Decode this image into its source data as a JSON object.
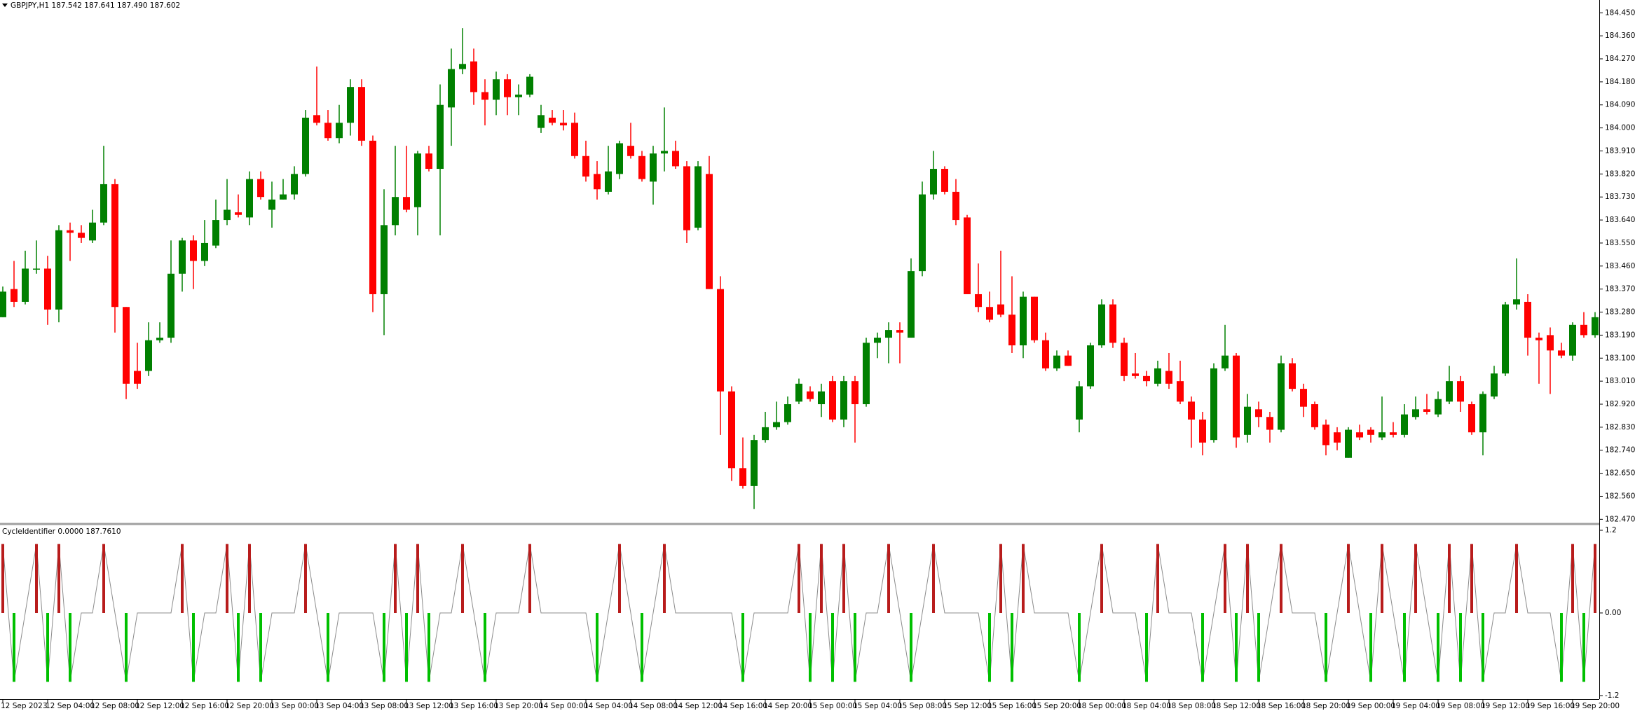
{
  "chart_data": [
    {
      "type": "candlestick",
      "title": "GBPJPY,H1  187.542 187.641 187.490 187.602",
      "categories": [
        "12 Sep 2023",
        null,
        null,
        null,
        "12 Sep 04:00",
        null,
        null,
        null,
        "12 Sep 08:00",
        null,
        null,
        null,
        "12 Sep 12:00",
        null,
        null,
        null,
        "12 Sep 16:00",
        null,
        null,
        null,
        "12 Sep 20:00",
        null,
        null,
        null,
        "13 Sep 00:00",
        null,
        null,
        null,
        "13 Sep 04:00",
        null,
        null,
        null,
        "13 Sep 08:00",
        null,
        null,
        null,
        "13 Sep 12:00",
        null,
        null,
        null,
        "13 Sep 16:00",
        null,
        null,
        null,
        "13 Sep 20:00",
        null,
        null,
        null,
        "14 Sep 00:00",
        null,
        null,
        null,
        "14 Sep 04:00",
        null,
        null,
        null,
        "14 Sep 08:00",
        null,
        null,
        null,
        "14 Sep 12:00",
        null,
        null,
        null,
        "14 Sep 16:00",
        null,
        null,
        null,
        "14 Sep 20:00",
        null,
        null,
        null,
        "15 Sep 00:00",
        null,
        null,
        null,
        "15 Sep 04:00",
        null,
        null,
        null,
        "15 Sep 08:00",
        null,
        null,
        null,
        "15 Sep 12:00",
        null,
        null,
        null,
        "15 Sep 16:00",
        null,
        null,
        null,
        "15 Sep 20:00",
        null,
        null,
        null,
        "18 Sep 00:00",
        null,
        null,
        null,
        "18 Sep 04:00",
        null,
        null,
        null,
        "18 Sep 08:00",
        null,
        null,
        null,
        "18 Sep 12:00",
        null,
        null,
        null,
        "18 Sep 16:00",
        null,
        null,
        null,
        "18 Sep 20:00",
        null,
        null,
        null,
        "19 Sep 00:00",
        null,
        null,
        null,
        "19 Sep 04:00",
        null,
        null,
        null,
        "19 Sep 08:00",
        null,
        null,
        null,
        "19 Sep 12:00",
        null,
        null,
        null,
        "19 Sep 16:00",
        null,
        null,
        null,
        "19 Sep 20:00",
        null,
        null
      ],
      "open": [
        183.26,
        183.37,
        183.32,
        183.45,
        183.45,
        183.29,
        183.6,
        183.59,
        183.56,
        183.63,
        183.78,
        183.3,
        183.05,
        183.05,
        183.17,
        183.18,
        183.43,
        183.56,
        183.48,
        183.54,
        183.64,
        183.67,
        183.65,
        183.8,
        183.68,
        183.72,
        183.74,
        183.82,
        184.05,
        184.02,
        183.96,
        184.02,
        184.16,
        183.95,
        183.35,
        183.62,
        183.73,
        183.69,
        183.9,
        183.84,
        184.08,
        184.23,
        184.26,
        184.14,
        184.11,
        184.19,
        184.12,
        184.13,
        184.0,
        184.04,
        184.02,
        184.02,
        183.89,
        183.82,
        183.75,
        183.82,
        183.93,
        183.89,
        183.79,
        183.9,
        183.91,
        183.85,
        183.61,
        183.82,
        183.37,
        182.97,
        182.67,
        182.6,
        182.78,
        182.83,
        182.85,
        182.93,
        182.97,
        182.92,
        183.01,
        182.86,
        183.01,
        182.92,
        183.16,
        183.18,
        183.21,
        183.18,
        183.44,
        183.74,
        183.84,
        183.75,
        183.65,
        183.35,
        183.3,
        183.31,
        183.27,
        183.15,
        183.34,
        183.17,
        183.06,
        183.11,
        182.86,
        182.99,
        183.15,
        183.31,
        183.16,
        183.04,
        183.03,
        183.0,
        183.05,
        183.01,
        182.93,
        182.86,
        182.78,
        183.06,
        183.11,
        182.8,
        182.9,
        182.87,
        182.82,
        183.08,
        182.98,
        182.92,
        182.84,
        182.81,
        182.71,
        182.81,
        182.82,
        182.79,
        182.81,
        182.8,
        182.87,
        182.9,
        182.88,
        182.93,
        183.01,
        182.92,
        182.81,
        182.95,
        183.04,
        183.31,
        183.32,
        183.18,
        183.19,
        183.13,
        183.11,
        183.23,
        183.19
      ],
      "high": [
        183.38,
        183.48,
        183.52,
        183.56,
        183.5,
        183.62,
        183.63,
        183.62,
        183.68,
        183.93,
        183.8,
        183.3,
        183.16,
        183.24,
        183.24,
        183.56,
        183.57,
        183.58,
        183.64,
        183.72,
        183.8,
        183.74,
        183.83,
        183.83,
        183.79,
        183.8,
        183.85,
        184.07,
        184.24,
        184.07,
        184.09,
        184.19,
        184.19,
        183.97,
        183.76,
        183.93,
        183.93,
        183.91,
        183.93,
        184.17,
        184.31,
        184.39,
        184.31,
        184.19,
        184.22,
        184.21,
        184.17,
        184.21,
        184.09,
        184.07,
        184.07,
        184.06,
        183.95,
        183.87,
        183.93,
        183.95,
        184.02,
        183.91,
        183.93,
        184.08,
        183.95,
        183.87,
        183.87,
        183.89,
        183.42,
        182.99,
        182.79,
        182.8,
        182.89,
        182.93,
        182.95,
        183.02,
        182.99,
        183.0,
        183.03,
        183.03,
        183.03,
        183.18,
        183.2,
        183.24,
        183.24,
        183.49,
        183.79,
        183.91,
        183.85,
        183.8,
        183.66,
        183.47,
        183.36,
        183.52,
        183.42,
        183.36,
        183.34,
        183.2,
        183.13,
        183.13,
        183.01,
        183.16,
        183.33,
        183.33,
        183.18,
        183.12,
        183.05,
        183.09,
        183.12,
        183.09,
        182.95,
        182.89,
        183.08,
        183.23,
        183.12,
        182.96,
        182.93,
        182.89,
        183.11,
        183.1,
        183.0,
        182.93,
        182.86,
        182.83,
        182.83,
        182.84,
        182.83,
        182.95,
        182.85,
        182.92,
        182.95,
        182.96,
        182.97,
        183.07,
        183.03,
        182.93,
        182.97,
        183.07,
        183.32,
        183.49,
        183.35,
        183.2,
        183.22,
        183.16,
        183.24,
        183.28,
        183.28
      ],
      "low": [
        183.26,
        183.3,
        183.31,
        183.43,
        183.23,
        183.24,
        183.48,
        183.55,
        183.55,
        183.62,
        183.2,
        182.94,
        182.98,
        183.03,
        183.16,
        183.16,
        183.36,
        183.37,
        183.46,
        183.53,
        183.62,
        183.65,
        183.62,
        183.72,
        183.61,
        183.72,
        183.72,
        183.81,
        184.01,
        183.95,
        183.94,
        183.97,
        183.93,
        183.28,
        183.19,
        183.58,
        183.67,
        183.58,
        183.83,
        183.58,
        183.93,
        184.21,
        184.09,
        184.01,
        184.05,
        184.05,
        184.05,
        184.12,
        183.98,
        184.01,
        183.99,
        183.88,
        183.79,
        183.72,
        183.74,
        183.8,
        183.88,
        183.79,
        183.7,
        183.83,
        183.84,
        183.55,
        183.6,
        183.37,
        182.8,
        182.62,
        182.59,
        182.51,
        182.77,
        182.82,
        182.84,
        182.92,
        182.93,
        182.87,
        182.85,
        182.83,
        182.77,
        182.91,
        183.1,
        183.08,
        183.08,
        183.18,
        183.42,
        183.72,
        183.74,
        183.62,
        183.35,
        183.28,
        183.24,
        183.26,
        183.12,
        183.1,
        183.16,
        183.05,
        183.05,
        183.07,
        182.81,
        182.98,
        183.14,
        183.14,
        183.01,
        183.02,
        182.99,
        182.99,
        182.98,
        182.92,
        182.75,
        182.72,
        182.77,
        183.05,
        182.75,
        182.77,
        182.83,
        182.77,
        182.81,
        182.97,
        182.87,
        182.82,
        182.72,
        182.74,
        182.71,
        182.78,
        182.77,
        182.78,
        182.79,
        182.79,
        182.86,
        182.88,
        182.87,
        182.92,
        182.89,
        182.8,
        182.72,
        182.94,
        183.03,
        183.29,
        183.11,
        183.0,
        182.96,
        183.1,
        183.09,
        183.18,
        183.18
      ],
      "close": [
        183.36,
        183.32,
        183.45,
        183.45,
        183.29,
        183.6,
        183.59,
        183.57,
        183.63,
        183.78,
        183.3,
        183.0,
        183.0,
        183.17,
        183.18,
        183.43,
        183.56,
        183.48,
        183.55,
        183.64,
        183.68,
        183.66,
        183.8,
        183.73,
        183.72,
        183.74,
        183.82,
        184.04,
        184.02,
        183.96,
        184.02,
        184.16,
        183.95,
        183.35,
        183.62,
        183.73,
        183.68,
        183.9,
        183.84,
        184.09,
        184.23,
        184.25,
        184.14,
        184.11,
        184.19,
        184.12,
        184.13,
        184.2,
        184.05,
        184.02,
        184.01,
        183.89,
        183.81,
        183.76,
        183.83,
        183.94,
        183.89,
        183.8,
        183.9,
        183.91,
        183.85,
        183.6,
        183.85,
        183.37,
        182.97,
        182.67,
        182.6,
        182.78,
        182.83,
        182.85,
        182.92,
        183.0,
        182.94,
        182.97,
        182.86,
        183.01,
        182.92,
        183.16,
        183.18,
        183.21,
        183.2,
        183.44,
        183.74,
        183.84,
        183.75,
        183.64,
        183.35,
        183.3,
        183.25,
        183.27,
        183.15,
        183.34,
        183.17,
        183.06,
        183.11,
        183.07,
        182.99,
        183.15,
        183.31,
        183.16,
        183.03,
        183.03,
        183.01,
        183.06,
        183.0,
        182.93,
        182.86,
        182.77,
        183.06,
        183.11,
        182.79,
        182.91,
        182.87,
        182.82,
        183.08,
        182.98,
        182.91,
        182.83,
        182.76,
        182.77,
        182.82,
        182.79,
        182.8,
        182.81,
        182.8,
        182.88,
        182.9,
        182.89,
        182.94,
        183.01,
        182.93,
        182.81,
        182.96,
        183.04,
        183.31,
        183.33,
        183.18,
        183.17,
        183.13,
        183.11,
        183.23,
        183.19,
        183.26
      ],
      "up_color": "#008000",
      "down_color": "#ff0000",
      "ylim": [
        182.46,
        184.5
      ],
      "yticks": [
        {
          "value": 184.45,
          "label": "184.450"
        },
        {
          "value": 184.36,
          "label": "184.360"
        },
        {
          "value": 184.27,
          "label": "184.270"
        },
        {
          "value": 184.18,
          "label": "184.180"
        },
        {
          "value": 184.09,
          "label": "184.090"
        },
        {
          "value": 184.0,
          "label": "184.000"
        },
        {
          "value": 183.91,
          "label": "183.910"
        },
        {
          "value": 183.82,
          "label": "183.820"
        },
        {
          "value": 183.73,
          "label": "183.730"
        },
        {
          "value": 183.64,
          "label": "183.640"
        },
        {
          "value": 183.55,
          "label": "183.550"
        },
        {
          "value": 183.46,
          "label": "183.460"
        },
        {
          "value": 183.37,
          "label": "183.370"
        },
        {
          "value": 183.28,
          "label": "183.280"
        },
        {
          "value": 183.19,
          "label": "183.190"
        },
        {
          "value": 183.1,
          "label": "183.100"
        },
        {
          "value": 183.01,
          "label": "183.010"
        },
        {
          "value": 182.92,
          "label": "182.920"
        },
        {
          "value": 182.83,
          "label": "182.830"
        },
        {
          "value": 182.74,
          "label": "182.740"
        },
        {
          "value": 182.65,
          "label": "182.650"
        },
        {
          "value": 182.56,
          "label": "182.560"
        },
        {
          "value": 182.47,
          "label": "182.470"
        }
      ]
    },
    {
      "type": "bar",
      "title": "CycleIdentifier 0.0000 187.7610",
      "values": [
        1,
        -1,
        0,
        1,
        -1,
        1,
        -1,
        0,
        0,
        1,
        0,
        -1,
        0,
        0,
        0,
        0,
        1,
        -1,
        0,
        0,
        1,
        -1,
        1,
        -1,
        0,
        0,
        0,
        1,
        0,
        -1,
        0,
        0,
        0,
        0,
        -1,
        1,
        -1,
        1,
        -1,
        0,
        0,
        1,
        0,
        -1,
        0,
        0,
        0,
        1,
        0,
        0,
        0,
        0,
        0,
        -1,
        0,
        1,
        0,
        -1,
        0,
        1,
        0,
        0,
        0,
        0,
        0,
        0,
        -1,
        0,
        0,
        0,
        0,
        1,
        -1,
        1,
        -1,
        1,
        -1,
        0,
        0,
        1,
        0,
        -1,
        0,
        1,
        0,
        0,
        0,
        0,
        -1,
        1,
        -1,
        1,
        0,
        0,
        0,
        0,
        -1,
        0,
        1,
        0,
        0,
        0,
        -1,
        1,
        0,
        0,
        0,
        -1,
        0,
        1,
        -1,
        1,
        -1,
        0,
        1,
        0,
        0,
        0,
        -1,
        0,
        1,
        0,
        -1,
        1,
        0,
        -1,
        1,
        0,
        -1,
        1,
        -1,
        1,
        -1,
        0,
        0,
        1,
        0,
        0,
        0,
        -1,
        1,
        -1,
        1
      ],
      "positive_color": "#b81c1c",
      "negative_color": "#00c000",
      "line_color": "#8c8c8c",
      "ylim": [
        -1.2,
        1.2
      ],
      "yticks": [
        1.2,
        {
          "value": 0,
          "label": "0.00"
        },
        -1.2
      ]
    }
  ]
}
